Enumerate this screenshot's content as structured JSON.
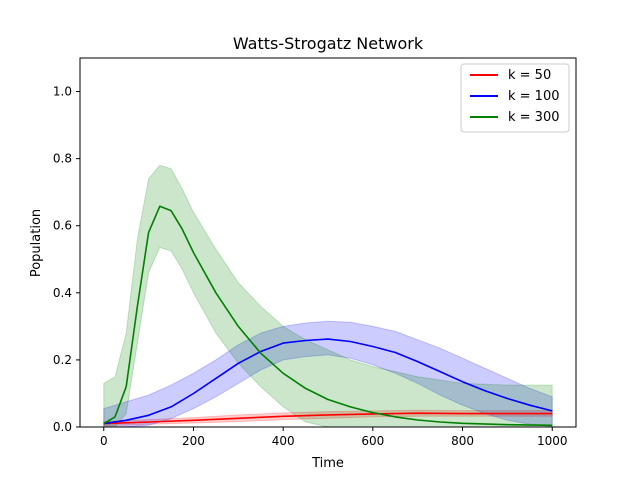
{
  "chart_data": {
    "type": "line",
    "title": "Watts-Strogatz Network",
    "xlabel": "Time",
    "ylabel": "Population",
    "xlim": [
      -53,
      1053
    ],
    "ylim": [
      0,
      1.1
    ],
    "xticks": [
      0,
      200,
      400,
      600,
      800,
      1000
    ],
    "yticks": [
      0.0,
      0.2,
      0.4,
      0.6,
      0.8,
      1.0
    ],
    "xtick_labels": [
      "0",
      "200",
      "400",
      "600",
      "800",
      "1000"
    ],
    "ytick_labels": [
      "0.0",
      "0.2",
      "0.4",
      "0.6",
      "0.8",
      "1.0"
    ],
    "grid": false,
    "legend_position": "top-right",
    "series": [
      {
        "name": "k = 50",
        "color": "#ff0000",
        "x": [
          0,
          100,
          200,
          300,
          400,
          500,
          600,
          700,
          800,
          900,
          1000
        ],
        "y": [
          0.01,
          0.015,
          0.02,
          0.026,
          0.032,
          0.036,
          0.039,
          0.041,
          0.04,
          0.04,
          0.04
        ],
        "lower": [
          0.004,
          0.008,
          0.012,
          0.016,
          0.022,
          0.026,
          0.03,
          0.032,
          0.032,
          0.032,
          0.032
        ],
        "upper": [
          0.016,
          0.022,
          0.028,
          0.036,
          0.042,
          0.046,
          0.048,
          0.05,
          0.049,
          0.049,
          0.049
        ]
      },
      {
        "name": "k = 100",
        "color": "#0000ff",
        "x": [
          0,
          50,
          100,
          150,
          200,
          250,
          300,
          350,
          400,
          450,
          500,
          550,
          600,
          650,
          700,
          750,
          800,
          850,
          900,
          950,
          1000
        ],
        "y": [
          0.01,
          0.02,
          0.035,
          0.06,
          0.1,
          0.145,
          0.19,
          0.225,
          0.25,
          0.258,
          0.262,
          0.255,
          0.24,
          0.222,
          0.195,
          0.165,
          0.135,
          0.108,
          0.085,
          0.065,
          0.048
        ],
        "lower": [
          0.0,
          0.0,
          0.005,
          0.025,
          0.055,
          0.09,
          0.13,
          0.17,
          0.2,
          0.21,
          0.215,
          0.205,
          0.185,
          0.16,
          0.13,
          0.095,
          0.065,
          0.04,
          0.02,
          0.008,
          0.002
        ],
        "upper": [
          0.055,
          0.075,
          0.095,
          0.125,
          0.16,
          0.2,
          0.245,
          0.28,
          0.3,
          0.31,
          0.315,
          0.312,
          0.3,
          0.285,
          0.26,
          0.235,
          0.205,
          0.175,
          0.145,
          0.115,
          0.09
        ]
      },
      {
        "name": "k = 300",
        "color": "#008000",
        "x": [
          0,
          25,
          50,
          75,
          100,
          125,
          150,
          175,
          200,
          250,
          300,
          350,
          400,
          450,
          500,
          550,
          600,
          650,
          700,
          750,
          800,
          900,
          1000
        ],
        "y": [
          0.01,
          0.03,
          0.12,
          0.36,
          0.58,
          0.658,
          0.645,
          0.59,
          0.52,
          0.4,
          0.3,
          0.22,
          0.16,
          0.115,
          0.082,
          0.06,
          0.043,
          0.03,
          0.021,
          0.015,
          0.011,
          0.007,
          0.005
        ],
        "lower": [
          0.0,
          0.0,
          0.04,
          0.25,
          0.46,
          0.535,
          0.525,
          0.47,
          0.4,
          0.28,
          0.19,
          0.12,
          0.06,
          0.015,
          0.0,
          0.0,
          0.0,
          0.0,
          0.0,
          0.0,
          0.0,
          0.0,
          0.0
        ],
        "upper": [
          0.13,
          0.15,
          0.28,
          0.56,
          0.74,
          0.78,
          0.77,
          0.71,
          0.64,
          0.53,
          0.43,
          0.36,
          0.3,
          0.26,
          0.23,
          0.2,
          0.18,
          0.165,
          0.15,
          0.14,
          0.13,
          0.125,
          0.125
        ]
      }
    ]
  }
}
